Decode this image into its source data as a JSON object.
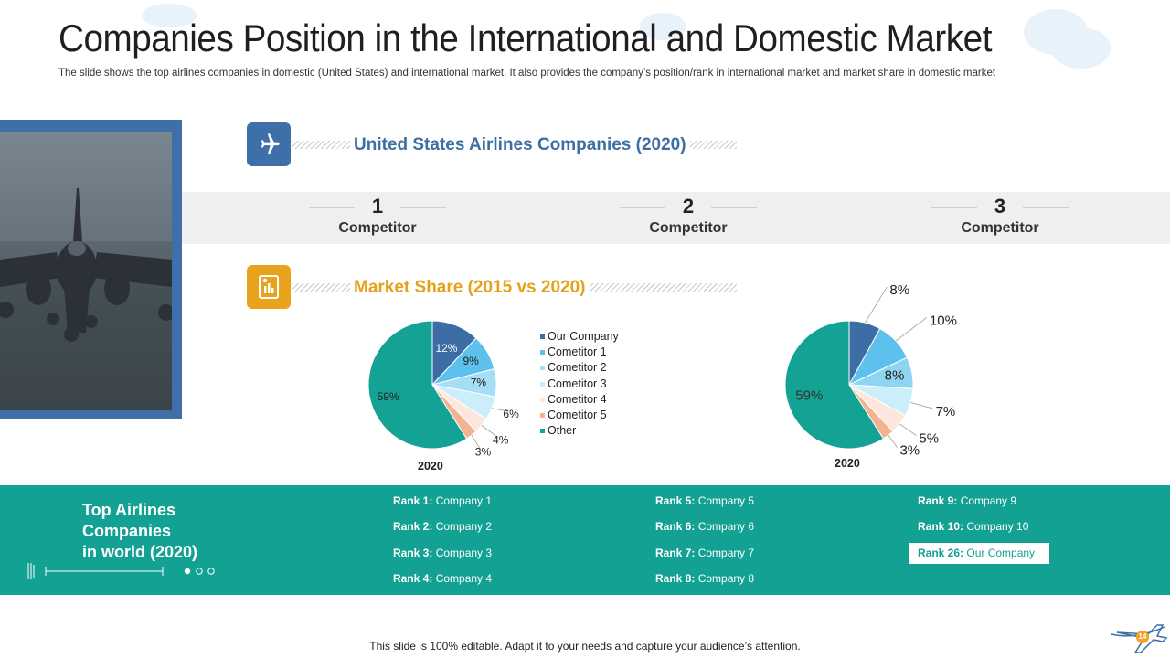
{
  "slide": {
    "title": "Companies Position in the International and Domestic Market",
    "subtitle": "The slide shows the top airlines companies in domestic (United States) and international market. It also provides the company’s position/rank in international market and market share in domestic market",
    "footer": "This slide is 100% editable. Adapt it to your needs and capture your audience’s attention.",
    "page_number": "14"
  },
  "us_section": {
    "heading": "United States Airlines Companies (2020)",
    "competitors": [
      {
        "rank": "1",
        "label": "Competitor"
      },
      {
        "rank": "2",
        "label": "Competitor"
      },
      {
        "rank": "3",
        "label": "Competitor"
      }
    ]
  },
  "market_section": {
    "heading": "Market Share (2015 vs 2020)"
  },
  "colors": {
    "brand_blue": "#3e6fa8",
    "heading_blue": "#3d6fa3",
    "heading_gold": "#e4a21b",
    "icon_gold": "#e9a21b",
    "teal": "#13a193",
    "rank_highlight_text": "#13a193"
  },
  "chart_data": [
    {
      "type": "pie",
      "title": "2020",
      "categories": [
        "Our Company",
        "Cometitor 1",
        "Cometitor 2",
        "Cometitor 3",
        "Cometitor 4",
        "Cometitor 5",
        "Other"
      ],
      "values": [
        12,
        9,
        7,
        6,
        4,
        3,
        59
      ],
      "labels": [
        "12%",
        "9%",
        "7%",
        "6%",
        "4%",
        "3%",
        "59%"
      ],
      "colors": [
        "#3d6da5",
        "#5cc1ec",
        "#a5def5",
        "#cceefa",
        "#fde7dd",
        "#f3b391",
        "#14a294"
      ],
      "legend_position": "right"
    },
    {
      "type": "pie",
      "title": "2020",
      "categories": [
        "Our Company",
        "Cometitor 1",
        "Cometitor 2",
        "Cometitor 3",
        "Cometitor 4",
        "Cometitor 5",
        "Other"
      ],
      "values": [
        8,
        10,
        8,
        7,
        5,
        3,
        59
      ],
      "labels": [
        "8%",
        "10%",
        "8%",
        "7%",
        "5%",
        "3%",
        "59%"
      ],
      "colors": [
        "#3d6da5",
        "#5cc1ec",
        "#8fd5f2",
        "#cceefa",
        "#fde7dd",
        "#f3b391",
        "#14a294"
      ]
    }
  ],
  "rankings": {
    "heading": "Top Airlines Companies in world (2020)",
    "heading_lines": [
      "Top Airlines",
      "Companies",
      "in world (2020)"
    ],
    "items": [
      {
        "rank": "Rank 1:",
        "company": " Company 1"
      },
      {
        "rank": "Rank 2:",
        "company": " Company 2"
      },
      {
        "rank": "Rank 3:",
        "company": " Company 3"
      },
      {
        "rank": "Rank 4:",
        "company": " Company 4"
      },
      {
        "rank": "Rank 5:",
        "company": " Company 5"
      },
      {
        "rank": "Rank 6:",
        "company": " Company 6"
      },
      {
        "rank": "Rank 7:",
        "company": " Company 7"
      },
      {
        "rank": "Rank 8:",
        "company": " Company 8"
      },
      {
        "rank": "Rank 9:",
        "company": " Company 9"
      },
      {
        "rank": "Rank 10:",
        "company": " Company 10"
      },
      {
        "rank": "Rank 26:",
        "company": " Our Company"
      }
    ]
  },
  "icons": {
    "us_section": "airplane-icon",
    "market_section": "report-chart-icon",
    "logo": "airplane-logo-icon",
    "slider_dots": "pagination-dots-icon"
  }
}
